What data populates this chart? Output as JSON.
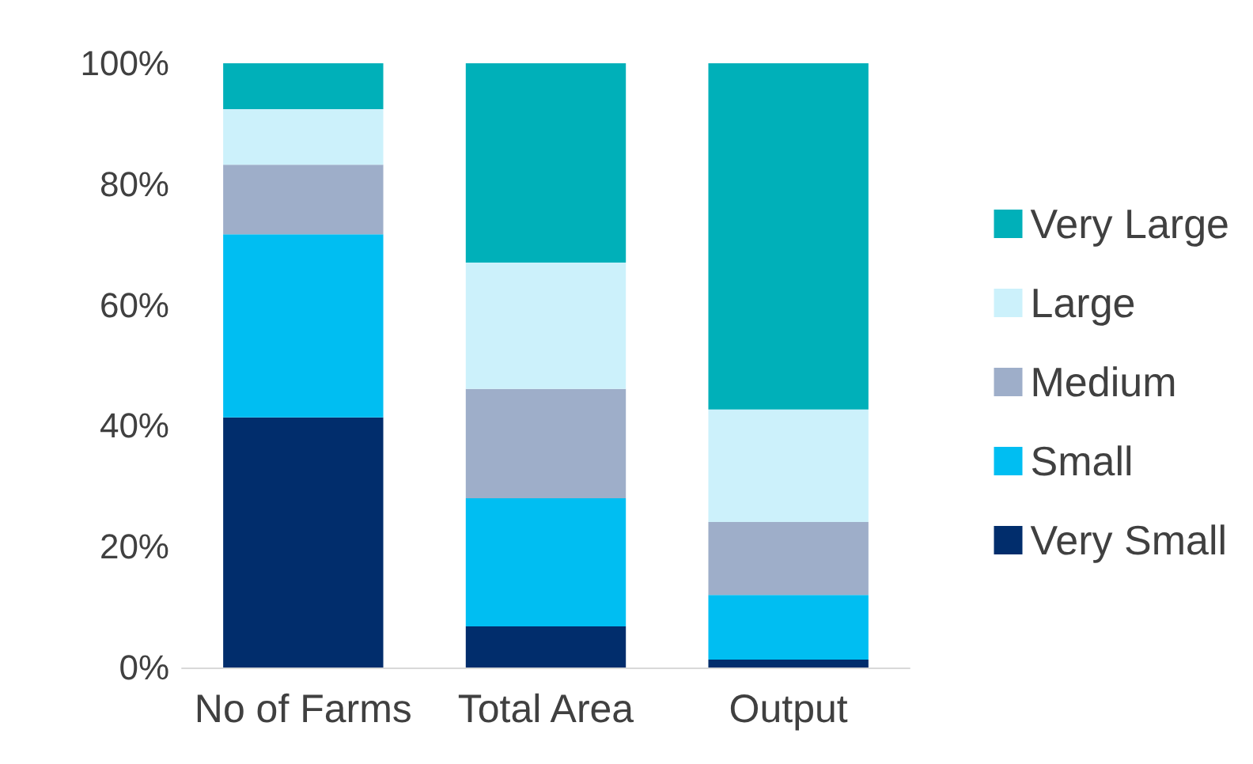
{
  "chart_data": {
    "type": "bar",
    "stacked": true,
    "categories": [
      "No of Farms",
      "Total Area",
      "Output"
    ],
    "series": [
      {
        "name": "Very Small",
        "color": "#012d6c",
        "values": [
          41.4,
          6.8,
          1.3
        ]
      },
      {
        "name": "Small",
        "color": "#00bef2",
        "values": [
          30.3,
          21.2,
          10.7
        ]
      },
      {
        "name": "Medium",
        "color": "#9eaec9",
        "values": [
          11.5,
          18.1,
          12.1
        ]
      },
      {
        "name": "Large",
        "color": "#ccf1fb",
        "values": [
          9.2,
          20.9,
          18.6
        ]
      },
      {
        "name": "Very Large",
        "color": "#00b0b9",
        "values": [
          7.6,
          33.0,
          57.3
        ]
      }
    ],
    "ylim": [
      0,
      100
    ],
    "yticks": [
      {
        "value": 0,
        "label": "0%"
      },
      {
        "value": 20,
        "label": "20%"
      },
      {
        "value": 40,
        "label": "40%"
      },
      {
        "value": 60,
        "label": "60%"
      },
      {
        "value": 80,
        "label": "80%"
      },
      {
        "value": 100,
        "label": "100%"
      }
    ],
    "legend": "right",
    "grid": false
  }
}
